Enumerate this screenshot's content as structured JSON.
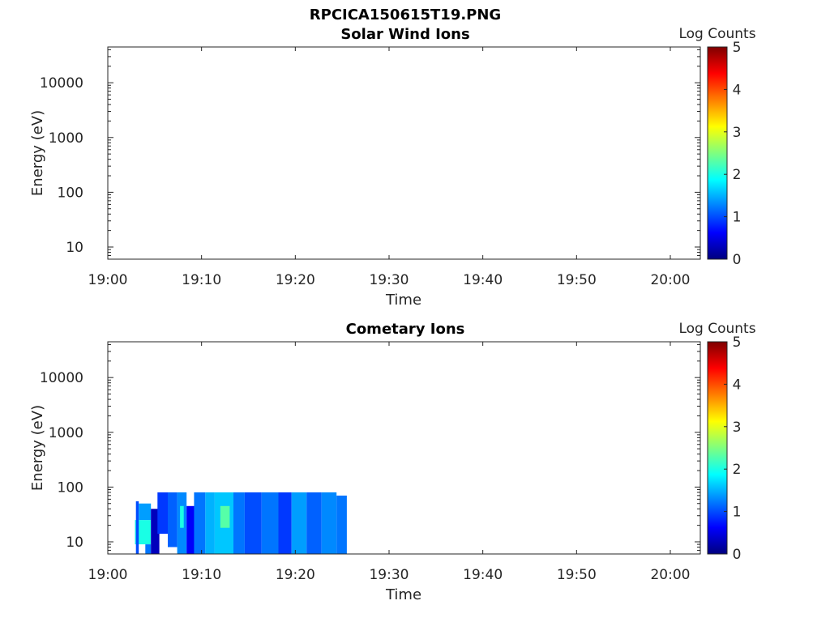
{
  "figure": {
    "suptitle": "RPCICA150615T19.PNG"
  },
  "colorscale": {
    "name": "jet",
    "stops": [
      "#00007f",
      "#0000ff",
      "#007fff",
      "#00ffff",
      "#7fff7f",
      "#ffff00",
      "#ff7f00",
      "#ff0000",
      "#7f0000"
    ]
  },
  "chart_data": [
    {
      "type": "heatmap",
      "title": "Solar Wind Ions",
      "xlabel": "Time",
      "ylabel": "Energy (eV)",
      "x_ticks": [
        "19:00",
        "19:10",
        "19:20",
        "19:30",
        "19:40",
        "19:50",
        "20:00"
      ],
      "x_tick_minutes": [
        0,
        10,
        20,
        30,
        40,
        50,
        60
      ],
      "xlim_minutes": [
        0,
        63.2
      ],
      "y_scale": "log",
      "ylim": [
        6,
        45000
      ],
      "y_ticks": [
        "10",
        "100",
        "1000",
        "10000"
      ],
      "y_tick_values": [
        10,
        100,
        1000,
        10000
      ],
      "colorbar": {
        "label": "Log Counts",
        "ticks": [
          "0",
          "1",
          "2",
          "3",
          "4",
          "5"
        ],
        "range": [
          0,
          5
        ]
      },
      "cells": []
    },
    {
      "type": "heatmap",
      "title": "Cometary Ions",
      "xlabel": "Time",
      "ylabel": "Energy (eV)",
      "x_ticks": [
        "19:00",
        "19:10",
        "19:20",
        "19:30",
        "19:40",
        "19:50",
        "20:00"
      ],
      "x_tick_minutes": [
        0,
        10,
        20,
        30,
        40,
        50,
        60
      ],
      "xlim_minutes": [
        0,
        63.2
      ],
      "y_scale": "log",
      "ylim": [
        6,
        45000
      ],
      "y_ticks": [
        "10",
        "100",
        "1000",
        "10000"
      ],
      "y_tick_values": [
        10,
        100,
        1000,
        10000
      ],
      "colorbar": {
        "label": "Log Counts",
        "ticks": [
          "0",
          "1",
          "2",
          "3",
          "4",
          "5"
        ],
        "range": [
          0,
          5
        ]
      },
      "data_extent": {
        "t_start_minutes": 2.9,
        "t_end_minutes": 25.5,
        "e_min": 6,
        "e_max": 80
      },
      "cells": [
        {
          "t0": 2.9,
          "t1": 4.6,
          "e0": 9,
          "e1": 25,
          "v": 2.0
        },
        {
          "t0": 3.0,
          "t1": 3.3,
          "e0": 6,
          "e1": 55,
          "v": 1.0
        },
        {
          "t0": 3.3,
          "t1": 4.6,
          "e0": 25,
          "e1": 50,
          "v": 1.4
        },
        {
          "t0": 4.0,
          "t1": 4.6,
          "e0": 6,
          "e1": 9,
          "v": 1.2
        },
        {
          "t0": 4.6,
          "t1": 5.5,
          "e0": 6,
          "e1": 40,
          "v": 0.3
        },
        {
          "t0": 5.3,
          "t1": 6.4,
          "e0": 14,
          "e1": 80,
          "v": 0.9
        },
        {
          "t0": 6.4,
          "t1": 7.4,
          "e0": 8,
          "e1": 80,
          "v": 1.1
        },
        {
          "t0": 7.4,
          "t1": 8.4,
          "e0": 6,
          "e1": 80,
          "v": 1.3
        },
        {
          "t0": 7.7,
          "t1": 8.1,
          "e0": 18,
          "e1": 45,
          "v": 2.0
        },
        {
          "t0": 8.4,
          "t1": 9.2,
          "e0": 6,
          "e1": 45,
          "v": 0.6
        },
        {
          "t0": 9.2,
          "t1": 10.4,
          "e0": 6,
          "e1": 80,
          "v": 1.2
        },
        {
          "t0": 10.4,
          "t1": 11.4,
          "e0": 6,
          "e1": 80,
          "v": 1.5
        },
        {
          "t0": 11.4,
          "t1": 13.4,
          "e0": 6,
          "e1": 80,
          "v": 1.6
        },
        {
          "t0": 12.0,
          "t1": 13.0,
          "e0": 18,
          "e1": 45,
          "v": 2.3
        },
        {
          "t0": 13.4,
          "t1": 14.6,
          "e0": 6,
          "e1": 80,
          "v": 1.2
        },
        {
          "t0": 14.6,
          "t1": 16.4,
          "e0": 6,
          "e1": 80,
          "v": 1.0
        },
        {
          "t0": 16.4,
          "t1": 18.2,
          "e0": 6,
          "e1": 80,
          "v": 1.2
        },
        {
          "t0": 18.2,
          "t1": 19.6,
          "e0": 6,
          "e1": 80,
          "v": 0.9
        },
        {
          "t0": 19.6,
          "t1": 21.2,
          "e0": 6,
          "e1": 80,
          "v": 1.4
        },
        {
          "t0": 21.2,
          "t1": 22.8,
          "e0": 6,
          "e1": 80,
          "v": 1.1
        },
        {
          "t0": 22.8,
          "t1": 24.4,
          "e0": 6,
          "e1": 80,
          "v": 1.3
        },
        {
          "t0": 24.4,
          "t1": 25.5,
          "e0": 6,
          "e1": 70,
          "v": 1.2
        }
      ]
    }
  ]
}
